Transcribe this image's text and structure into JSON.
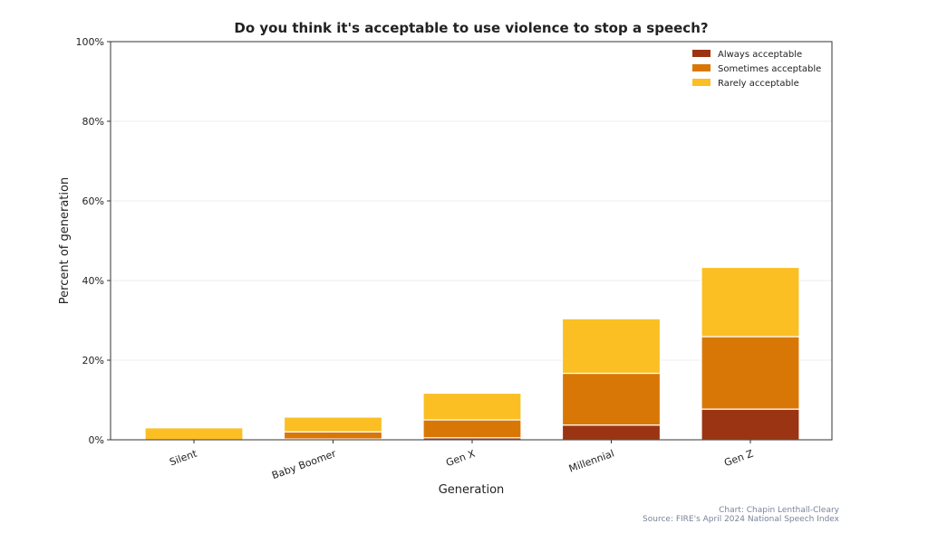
{
  "chart_data": {
    "type": "bar",
    "stacked": true,
    "title": "Do you think it's acceptable to use violence to stop a speech?",
    "xlabel": "Generation",
    "ylabel": "Percent of generation",
    "ylim": [
      0,
      100
    ],
    "yticks": [
      "0%",
      "20%",
      "40%",
      "60%",
      "80%",
      "100%"
    ],
    "grid": true,
    "legend_position": "top-right",
    "categories": [
      "Silent",
      "Baby Boomer",
      "Gen X",
      "Millennial",
      "Gen Z"
    ],
    "series": [
      {
        "name": "Always acceptable",
        "color": "#9a3412",
        "values": [
          0,
          0.2,
          0.5,
          3.7,
          7.7
        ]
      },
      {
        "name": "Sometimes acceptable",
        "color": "#d97706",
        "values": [
          0,
          1.8,
          4.5,
          13.0,
          18.2
        ]
      },
      {
        "name": "Rarely acceptable",
        "color": "#fbbf24",
        "values": [
          3.0,
          3.7,
          6.7,
          13.7,
          17.4
        ]
      }
    ],
    "credits": [
      "Chart: Chapin Lenthall-Cleary",
      "Source: FIRE's April 2024 National Speech Index"
    ]
  }
}
